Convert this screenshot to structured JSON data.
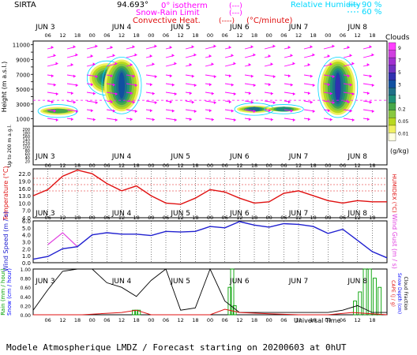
{
  "header": {
    "site": "SIRTA",
    "coord": "94.693°",
    "legend_isotherm": "0° isotherm",
    "legend_snow_rain": "Snow-Rain Limit",
    "legend_convective": "Convective Heat.",
    "legend_convective_unit": "(°C/minute)",
    "legend_isotherm_sym": "(---)",
    "legend_snow_sym": "(---)",
    "legend_conv_sym": "(----)",
    "rh_label": "Relative Humidity",
    "rh_values": [
      "90 %",
      "60 %"
    ]
  },
  "footer": {
    "universal_time": "Universal Time",
    "model_line": "Modele Atmospherique LMDZ / Forecast starting on 20200603 at 0hUT"
  },
  "time_axis": {
    "days": [
      "JUN 3",
      "JUN 4",
      "JUN 5",
      "JUN 6",
      "JUN 7",
      "JUN 8"
    ],
    "hours": [
      "06",
      "12",
      "18",
      "00",
      "06",
      "12",
      "18",
      "00",
      "06",
      "12",
      "18",
      "00",
      "06",
      "12",
      "18",
      "00",
      "06",
      "12",
      "18",
      "00",
      "06",
      "12",
      "18"
    ]
  },
  "colors": {
    "cloud_scale": [
      "#ffffe0",
      "#f0f060",
      "#b8d820",
      "#88c840",
      "#48a848",
      "#209078",
      "#207088",
      "#1050a0",
      "#3030b0",
      "#7030c0",
      "#a030d0",
      "#d040e0",
      "#ff40ff"
    ],
    "temperature": "#e01010",
    "humidex": "#e01010",
    "wind_speed": "#2020d0",
    "wind_gust": "#e040e0",
    "rain": "#00a000",
    "snow": "#0000ff",
    "cape": "#e01010",
    "snow_depth": "#0000ff",
    "cloud_fraction": "#000000",
    "magenta": "#ff00ff",
    "cyan": "#00d8ff"
  },
  "chart_data": [
    {
      "type": "heatmap",
      "panel": "clouds",
      "ylabel": "Height (m a.s.l.)",
      "ylabel_low": "Up to 200 m a.g.l.",
      "yticks_upper": [
        1000,
        2000,
        3000,
        4000,
        5000,
        6000,
        7000,
        8000,
        9000,
        10000,
        11000
      ],
      "yticks_upper_labels": [
        "1000",
        "3000",
        "5000",
        "7000",
        "9000",
        "11000"
      ],
      "yticks_lower": [
        "200",
        "180",
        "160",
        "140",
        "120",
        "100",
        "80",
        "60",
        "40",
        "20"
      ],
      "colorbar_title": "Clouds",
      "colorbar_unit": "(g/kg)",
      "colorbar_labels": [
        "9",
        "7",
        "5",
        "3",
        "1",
        "0.2",
        "0.05",
        "0.01"
      ],
      "cloud_blobs": [
        {
          "day_hour": 10,
          "base": 1500,
          "top": 2600,
          "level": 3
        },
        {
          "day_hour": 30,
          "base": 4500,
          "top": 8500,
          "level": 5
        },
        {
          "day_hour": 36,
          "base": 2000,
          "top": 9000,
          "level": 6
        },
        {
          "day_hour": 90,
          "base": 1800,
          "top": 2800,
          "level": 5
        },
        {
          "day_hour": 102,
          "base": 2000,
          "top": 2600,
          "level": 4
        },
        {
          "day_hour": 124,
          "base": 1500,
          "top": 9000,
          "level": 7
        }
      ]
    },
    {
      "type": "line",
      "panel": "temperature",
      "ylabel": "Temperature (°C)",
      "ylabel_right": "HUMIDEX (°C)",
      "yticks": [
        "4.0",
        "7.0",
        "10.0",
        "13.0",
        "16.0",
        "19.0",
        "22.0"
      ],
      "ylim": [
        4,
        24
      ],
      "x_hours": [
        0,
        6,
        12,
        18,
        24,
        30,
        36,
        42,
        48,
        54,
        60,
        66,
        72,
        78,
        84,
        90,
        96,
        102,
        108,
        114,
        120,
        126,
        132,
        138,
        144
      ],
      "series": [
        {
          "values": [
            13,
            15.5,
            21,
            23.5,
            22,
            18,
            15,
            17,
            13,
            10,
            9.5,
            12,
            15.5,
            14.5,
            12,
            10,
            10.5,
            14,
            15,
            13,
            11,
            10,
            11,
            10.5,
            10.5
          ]
        }
      ]
    },
    {
      "type": "line",
      "panel": "wind",
      "ylabel": "Wind Speed (m / s)",
      "ylabel_right": "Wind Gust (m / s)",
      "yticks": [
        "0.0",
        "1.0",
        "2.0",
        "3.0",
        "4.0",
        "5.0",
        "6.0"
      ],
      "ylim": [
        0,
        6
      ],
      "x_hours": [
        0,
        6,
        12,
        18,
        24,
        30,
        36,
        42,
        48,
        54,
        60,
        66,
        72,
        78,
        84,
        90,
        96,
        102,
        108,
        114,
        120,
        126,
        132,
        138,
        144
      ],
      "series": [
        {
          "values": [
            0.5,
            0.9,
            2,
            2.3,
            4,
            4.3,
            4.1,
            4.1,
            3.9,
            4.5,
            4.4,
            4.5,
            5.2,
            5.0,
            5.9,
            5.4,
            5.1,
            5.6,
            5.5,
            5.2,
            4.2,
            4.8,
            3.2,
            1.6,
            0.7
          ]
        },
        {
          "values": [
            null,
            2.6,
            4.3,
            2.3,
            null,
            null,
            null,
            null,
            null,
            null,
            null,
            null,
            null,
            null,
            null,
            null,
            null,
            null,
            null,
            null,
            null,
            null,
            null,
            null,
            null
          ]
        }
      ]
    },
    {
      "type": "bar",
      "panel": "precip",
      "ylabel_left": [
        "Rain (mm / hour)",
        "Snow (cm / hour)"
      ],
      "ylabel_right": [
        "CAPE (J / g)",
        "Snow Depth (cm)",
        "Cloud Fraction"
      ],
      "yticks": [
        "0.00",
        "0.20",
        "0.40",
        "0.60",
        "0.80",
        "1.00"
      ],
      "ylim": [
        0,
        1
      ],
      "cloud_fraction": {
        "x_hours": [
          0,
          6,
          12,
          18,
          24,
          30,
          36,
          42,
          48,
          54,
          60,
          66,
          72,
          78,
          84,
          90,
          96,
          102,
          108,
          114,
          120,
          126,
          132,
          138,
          144
        ],
        "values": [
          0.1,
          0.55,
          0.95,
          1.0,
          1.0,
          0.7,
          0.6,
          0.4,
          0.75,
          1.0,
          0.1,
          0.15,
          1.0,
          0.3,
          0.05,
          0.05,
          0.05,
          0.05,
          0.05,
          0.05,
          0.05,
          0.1,
          0.2,
          0.05,
          0.05
        ]
      },
      "rain": {
        "x_hours": [
          41,
          42,
          43,
          80,
          81,
          82,
          131,
          133,
          135,
          137,
          139,
          141
        ],
        "values": [
          0.1,
          0.1,
          0.1,
          0.6,
          1.0,
          0.2,
          0.3,
          0.5,
          1.0,
          1.0,
          0.8,
          0.6
        ]
      },
      "cape": {
        "x_hours": [
          0,
          20,
          36,
          42,
          48,
          72,
          78,
          84,
          96,
          108,
          120,
          130,
          144
        ],
        "values": [
          0,
          0,
          0.05,
          0.1,
          0,
          0,
          0.12,
          0.05,
          0.02,
          0,
          0,
          0.05,
          0
        ]
      }
    }
  ]
}
